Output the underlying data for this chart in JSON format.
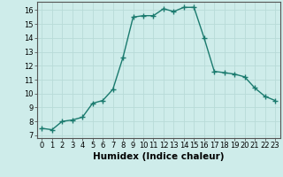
{
  "x": [
    0,
    1,
    2,
    3,
    4,
    5,
    6,
    7,
    8,
    9,
    10,
    11,
    12,
    13,
    14,
    15,
    16,
    17,
    18,
    19,
    20,
    21,
    22,
    23
  ],
  "y": [
    7.5,
    7.4,
    8.0,
    8.1,
    8.3,
    9.3,
    9.5,
    10.3,
    12.6,
    15.5,
    15.6,
    15.6,
    16.1,
    15.9,
    16.2,
    16.2,
    14.0,
    11.6,
    11.5,
    11.4,
    11.2,
    10.4,
    9.8,
    9.5
  ],
  "line_color": "#1a7a6e",
  "marker": "+",
  "marker_size": 4,
  "bg_color": "#ceecea",
  "grid_color": "#b8dbd8",
  "xlabel": "Humidex (Indice chaleur)",
  "xlim": [
    -0.5,
    23.5
  ],
  "ylim": [
    6.8,
    16.6
  ],
  "yticks": [
    7,
    8,
    9,
    10,
    11,
    12,
    13,
    14,
    15,
    16
  ],
  "xticks": [
    0,
    1,
    2,
    3,
    4,
    5,
    6,
    7,
    8,
    9,
    10,
    11,
    12,
    13,
    14,
    15,
    16,
    17,
    18,
    19,
    20,
    21,
    22,
    23
  ],
  "tick_label_size": 6,
  "xlabel_size": 7.5,
  "line_width": 1.0
}
